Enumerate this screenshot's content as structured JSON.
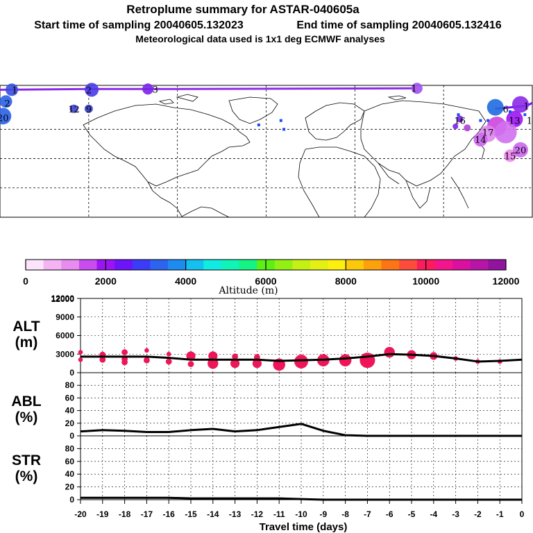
{
  "header": {
    "title": "Retroplume summary for ASTAR-040605a",
    "start_label": "Start time of sampling 20040605.132023",
    "end_label": "End time of sampling 20040605.132416",
    "met_label": "Meteorological data used is 1x1 deg ECMWF analyses"
  },
  "map": {
    "plume_labels": [
      {
        "text": "1",
        "lon": -170,
        "lat": 87,
        "color": "#3a4fe0"
      },
      {
        "text": "2",
        "lon": -120,
        "lat": 87,
        "color": "#4a3be8"
      },
      {
        "text": "3",
        "lon": -75,
        "lat": 87.5,
        "color": "#7a22e8"
      },
      {
        "text": "1",
        "lon": 100,
        "lat": 88,
        "color": "#a050f0"
      },
      {
        "text": "2",
        "lon": -175,
        "lat": 78,
        "color": "#2a60e8"
      },
      {
        "text": "12",
        "lon": -130,
        "lat": 74,
        "color": "#3a40d0"
      },
      {
        "text": "9",
        "lon": -120,
        "lat": 74,
        "color": "#3a40d0"
      },
      {
        "text": "20",
        "lon": -178,
        "lat": 68,
        "color": "#2a60e8"
      },
      {
        "text": "6",
        "lon": 162,
        "lat": 74,
        "color": "#1f6ae0"
      },
      {
        "text": "1",
        "lon": 176,
        "lat": 76,
        "color": "#8a2ae8"
      },
      {
        "text": "16",
        "lon": 131,
        "lat": 66,
        "color": "#cc44dd"
      },
      {
        "text": "13",
        "lon": 168,
        "lat": 66,
        "color": "#cc44dd"
      },
      {
        "text": "18",
        "lon": 180,
        "lat": 66,
        "color": "#cc44dd"
      },
      {
        "text": "17",
        "lon": 150,
        "lat": 58,
        "color": "#cc66ee"
      },
      {
        "text": "14",
        "lon": 145,
        "lat": 53,
        "color": "#cc66ee"
      },
      {
        "text": "15",
        "lon": 165,
        "lat": 42,
        "color": "#cc66ee"
      },
      {
        "text": "20",
        "lon": 172,
        "lat": 46,
        "color": "#cc66ee"
      }
    ]
  },
  "colorbar": {
    "colors": [
      "#fce4fc",
      "#f4b4f4",
      "#e88cf0",
      "#c84cf0",
      "#9c14f4",
      "#6e14f8",
      "#3c3cf8",
      "#2c64f0",
      "#1c8cf0",
      "#14c0f0",
      "#10ece4",
      "#10f4b8",
      "#14f484",
      "#5cf014",
      "#94f014",
      "#c4f014",
      "#e4f014",
      "#fcf00c",
      "#fcc80c",
      "#fca00c",
      "#fc7414",
      "#fc4c3c",
      "#fc1c5c",
      "#f4148c",
      "#dc10a0",
      "#b814a8",
      "#9014a0"
    ],
    "tick_labels": [
      "0",
      "2000",
      "4000",
      "6000",
      "8000",
      "10000",
      "12000"
    ],
    "title": "Altitude (m)"
  },
  "panels": {
    "alt_label_line1": "ALT",
    "alt_label_line2": "(m)",
    "abl_label_line1": "ABL",
    "abl_label_line2": "(%)",
    "str_label_line1": "STR",
    "str_label_line2": "(%)"
  },
  "xaxis": {
    "title": "Travel time (days)"
  },
  "chart_data": [
    {
      "type": "line",
      "name": "ALT",
      "title": "",
      "ylabel": "ALT (m)",
      "xlabel": "Travel time (days)",
      "xlim": [
        -20,
        0
      ],
      "ylim": [
        0,
        12000
      ],
      "yticks": [
        0,
        3000,
        6000,
        9000,
        12000
      ],
      "x": [
        -20,
        -19,
        -18,
        -17,
        -16,
        -15,
        -14,
        -13,
        -12,
        -11,
        -10,
        -9,
        -8,
        -7,
        -6,
        -5,
        -4,
        -3,
        -2,
        -1,
        0
      ],
      "y": [
        2600,
        2600,
        2600,
        2600,
        2400,
        2100,
        2100,
        2100,
        2100,
        1900,
        2000,
        2100,
        2300,
        2600,
        3000,
        2900,
        2700,
        2300,
        1800,
        1900,
        2100
      ],
      "scatter_points": [
        {
          "x": -20,
          "y": 3300,
          "s": 1.5
        },
        {
          "x": -20,
          "y": 2100,
          "s": 1.5
        },
        {
          "x": -19,
          "y": 2900,
          "s": 2
        },
        {
          "x": -19,
          "y": 2100,
          "s": 2
        },
        {
          "x": -18,
          "y": 3300,
          "s": 2
        },
        {
          "x": -18,
          "y": 2200,
          "s": 2
        },
        {
          "x": -18,
          "y": 1700,
          "s": 2
        },
        {
          "x": -17,
          "y": 3600,
          "s": 1.5
        },
        {
          "x": -17,
          "y": 2000,
          "s": 2
        },
        {
          "x": -16,
          "y": 3000,
          "s": 1.5
        },
        {
          "x": -16,
          "y": 1800,
          "s": 2
        },
        {
          "x": -15,
          "y": 2700,
          "s": 3
        },
        {
          "x": -15,
          "y": 1400,
          "s": 2
        },
        {
          "x": -14,
          "y": 2700,
          "s": 3
        },
        {
          "x": -14,
          "y": 1500,
          "s": 3.5
        },
        {
          "x": -13,
          "y": 2600,
          "s": 2
        },
        {
          "x": -13,
          "y": 1500,
          "s": 3
        },
        {
          "x": -12,
          "y": 2500,
          "s": 2
        },
        {
          "x": -12,
          "y": 1500,
          "s": 3
        },
        {
          "x": -11,
          "y": 1300,
          "s": 4
        },
        {
          "x": -10,
          "y": 1800,
          "s": 4.5
        },
        {
          "x": -9,
          "y": 2000,
          "s": 4
        },
        {
          "x": -8,
          "y": 2000,
          "s": 4
        },
        {
          "x": -7,
          "y": 2000,
          "s": 5
        },
        {
          "x": -6,
          "y": 3300,
          "s": 3.5
        },
        {
          "x": -5,
          "y": 2900,
          "s": 3
        },
        {
          "x": -4,
          "y": 2700,
          "s": 2.5
        },
        {
          "x": -3,
          "y": 2300,
          "s": 1.5
        },
        {
          "x": -2,
          "y": 1800,
          "s": 1.5
        },
        {
          "x": -1,
          "y": 1800,
          "s": 1.5
        }
      ],
      "marker_color": "#ee1659"
    },
    {
      "type": "line",
      "name": "ABL",
      "ylabel": "ABL (%)",
      "xlim": [
        -20,
        0
      ],
      "ylim": [
        0,
        100
      ],
      "yticks": [
        0,
        20,
        40,
        60,
        80
      ],
      "x": [
        -20,
        -19,
        -18,
        -17,
        -16,
        -15,
        -14,
        -13,
        -12,
        -11,
        -10,
        -9,
        -8,
        -7,
        -6,
        -5,
        -4,
        -3,
        -2,
        -1,
        0
      ],
      "y": [
        7,
        9,
        8,
        6,
        6,
        9,
        11,
        7,
        9,
        14,
        19,
        8,
        1,
        0,
        0,
        0,
        0,
        0,
        0,
        0,
        0
      ]
    },
    {
      "type": "line",
      "name": "STR",
      "ylabel": "STR (%)",
      "xlim": [
        -20,
        0
      ],
      "ylim": [
        0,
        100
      ],
      "yticks": [
        0,
        20,
        40,
        60,
        80
      ],
      "x": [
        -20,
        -19,
        -18,
        -17,
        -16,
        -15,
        -14,
        -13,
        -12,
        -11,
        -10,
        -9,
        -8,
        -7,
        -6,
        -5,
        -4,
        -3,
        -2,
        -1,
        0
      ],
      "y": [
        3,
        3,
        3,
        3,
        3,
        2,
        2,
        2,
        2,
        2,
        1,
        0,
        0,
        0,
        0,
        0,
        0,
        0,
        0,
        0,
        0
      ]
    }
  ],
  "xticks": [
    "-20",
    "-19",
    "-18",
    "-17",
    "-16",
    "-15",
    "-14",
    "-13",
    "-12",
    "-11",
    "-10",
    "-9",
    "-8",
    "-7",
    "-6",
    "-5",
    "-4",
    "-3",
    "-2",
    "-1",
    "0"
  ]
}
